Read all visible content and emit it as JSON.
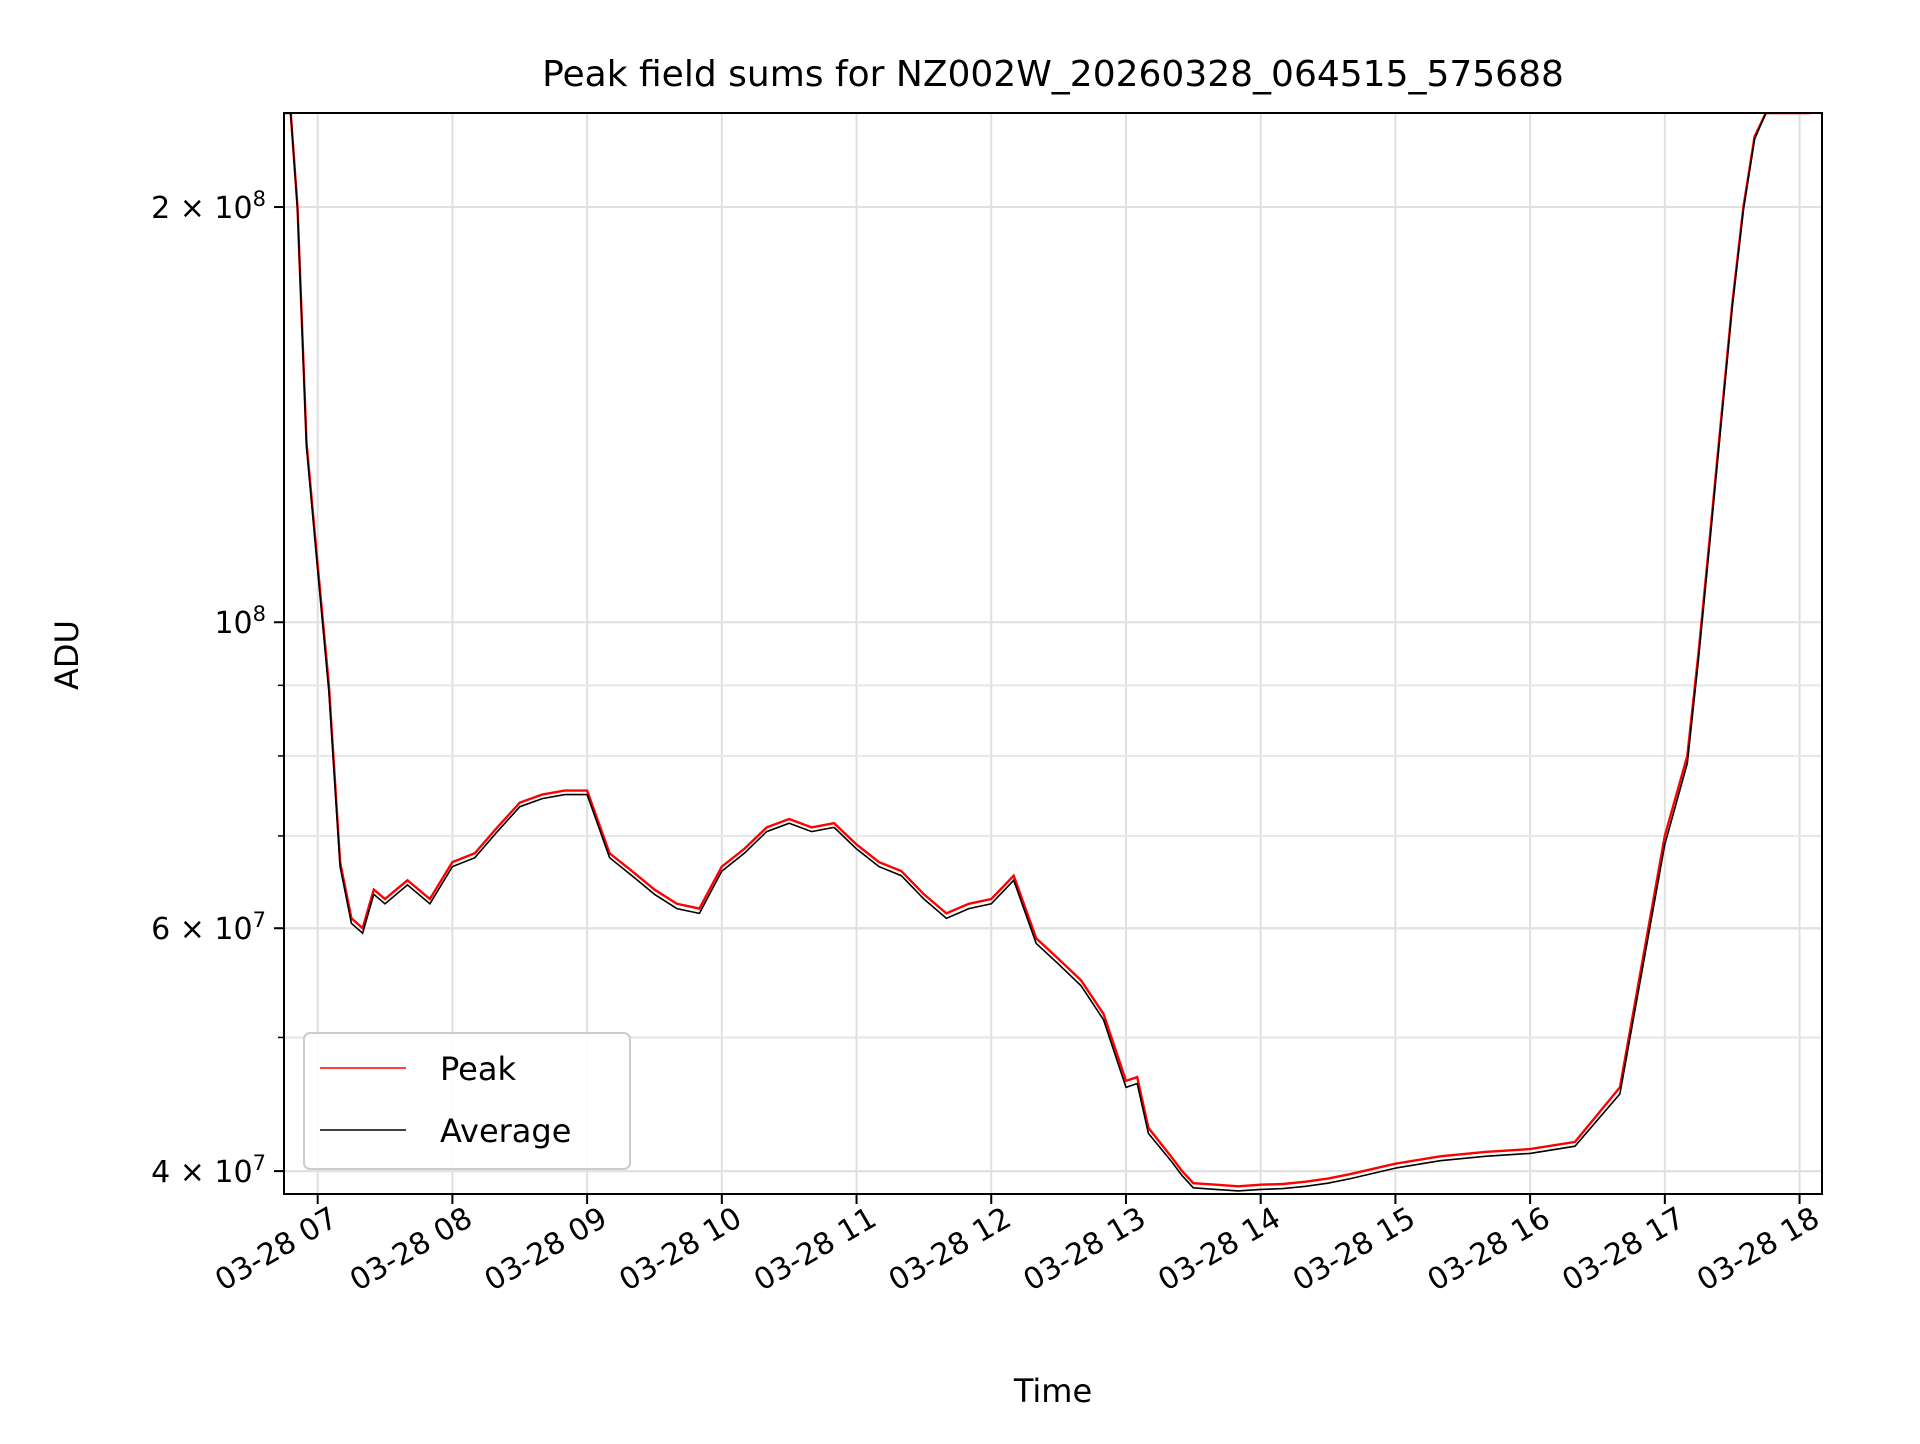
{
  "chart_data": {
    "type": "line",
    "title": "Peak field sums for NZ002W_20260328_064515_575688",
    "xlabel": "Time",
    "ylabel": "ADU",
    "yscale": "log",
    "ylim": [
      38500000,
      234000000
    ],
    "xlim": [
      "03-28 06:45",
      "03-28 18:10"
    ],
    "grid": true,
    "legend_position": "lower-left",
    "x_ticks": [
      "03-28 07",
      "03-28 08",
      "03-28 09",
      "03-28 10",
      "03-28 11",
      "03-28 12",
      "03-28 13",
      "03-28 14",
      "03-28 15",
      "03-28 16",
      "03-28 17",
      "03-28 18"
    ],
    "y_ticks": [
      {
        "value": 40000000,
        "label": "4 × 10^7",
        "mant": "4",
        "exp": "7"
      },
      {
        "value": 60000000,
        "label": "6 × 10^7",
        "mant": "6",
        "exp": "7"
      },
      {
        "value": 100000000,
        "label": "10^8",
        "mant": "",
        "exp": "8"
      },
      {
        "value": 200000000,
        "label": "2 × 10^8",
        "mant": "2",
        "exp": "8"
      }
    ],
    "x": [
      "06:45",
      "06:48",
      "06:51",
      "06:55",
      "07:00",
      "07:05",
      "07:10",
      "07:15",
      "07:20",
      "07:25",
      "07:30",
      "07:35",
      "07:40",
      "07:50",
      "08:00",
      "08:10",
      "08:20",
      "08:30",
      "08:40",
      "08:50",
      "09:00",
      "09:10",
      "09:20",
      "09:30",
      "09:40",
      "09:50",
      "10:00",
      "10:10",
      "10:20",
      "10:30",
      "10:40",
      "10:50",
      "11:00",
      "11:10",
      "11:20",
      "11:30",
      "11:40",
      "11:50",
      "12:00",
      "12:10",
      "12:20",
      "12:30",
      "12:40",
      "12:50",
      "13:00",
      "13:05",
      "13:10",
      "13:20",
      "13:25",
      "13:30",
      "13:40",
      "13:50",
      "14:00",
      "14:10",
      "14:20",
      "14:30",
      "14:40",
      "15:00",
      "15:20",
      "15:40",
      "16:00",
      "16:20",
      "16:40",
      "17:00",
      "17:10",
      "17:15",
      "17:20",
      "17:25",
      "17:30",
      "17:35",
      "17:40",
      "17:45",
      "17:50",
      "17:55",
      "18:00",
      "18:05"
    ],
    "series": [
      {
        "name": "Peak",
        "color": "#ff0000",
        "values": [
          234000000,
          234000000,
          200000000,
          135000000,
          110000000,
          90000000,
          67000000,
          61000000,
          60000000,
          64000000,
          63000000,
          64000000,
          65000000,
          63000000,
          67000000,
          68000000,
          71000000,
          74000000,
          75000000,
          75500000,
          75500000,
          68000000,
          66000000,
          64000000,
          62500000,
          62000000,
          66500000,
          68500000,
          71000000,
          72000000,
          71000000,
          71500000,
          69000000,
          67000000,
          66000000,
          63500000,
          61500000,
          62500000,
          63000000,
          65500000,
          59000000,
          57000000,
          55000000,
          52000000,
          46500000,
          46800000,
          43000000,
          41000000,
          40000000,
          39200000,
          39100000,
          39000000,
          39100000,
          39150000,
          39300000,
          39500000,
          39800000,
          40500000,
          41000000,
          41300000,
          41500000,
          42000000,
          46000000,
          70000000,
          80000000,
          95000000,
          115000000,
          140000000,
          170000000,
          200000000,
          225000000,
          234000000,
          234000000,
          234000000,
          234000000,
          234000000
        ]
      },
      {
        "name": "Average",
        "color": "#000000",
        "values": [
          234000000,
          234000000,
          199000000,
          134000000,
          109000000,
          89000000,
          66500000,
          60500000,
          59500000,
          63500000,
          62500000,
          63500000,
          64500000,
          62500000,
          66500000,
          67500000,
          70500000,
          73500000,
          74500000,
          75000000,
          75000000,
          67500000,
          65500000,
          63500000,
          62000000,
          61500000,
          66000000,
          68000000,
          70500000,
          71500000,
          70500000,
          71000000,
          68500000,
          66500000,
          65500000,
          63000000,
          61000000,
          62000000,
          62500000,
          65000000,
          58500000,
          56500000,
          54500000,
          51500000,
          46000000,
          46300000,
          42600000,
          40700000,
          39700000,
          38900000,
          38800000,
          38700000,
          38800000,
          38850000,
          39000000,
          39200000,
          39500000,
          40200000,
          40700000,
          41000000,
          41200000,
          41700000,
          45500000,
          69000000,
          79000000,
          94000000,
          114000000,
          139000000,
          169000000,
          199000000,
          224000000,
          234000000,
          234000000,
          234000000,
          234000000,
          234000000
        ]
      }
    ]
  }
}
